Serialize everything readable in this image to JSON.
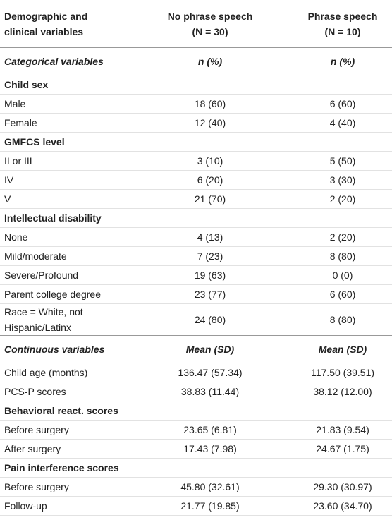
{
  "table": {
    "header": [
      [
        "Demographic and",
        "clinical variables"
      ],
      [
        "No phrase speech",
        "(N = 30)"
      ],
      [
        "Phrase speech",
        "(N = 10)"
      ]
    ],
    "rows": [
      {
        "kind": "group",
        "cells": [
          "Categorical variables",
          "n (%)",
          "n (%)"
        ]
      },
      {
        "kind": "section",
        "cells": [
          "Child sex"
        ]
      },
      {
        "kind": "data",
        "cells": [
          "Male",
          "18 (60)",
          "6 (60)"
        ]
      },
      {
        "kind": "data",
        "cells": [
          "Female",
          "12 (40)",
          "4 (40)"
        ]
      },
      {
        "kind": "section",
        "cells": [
          "GMFCS level"
        ]
      },
      {
        "kind": "data",
        "cells": [
          "II or III",
          "3 (10)",
          "5 (50)"
        ]
      },
      {
        "kind": "data",
        "cells": [
          "IV",
          "6 (20)",
          "3 (30)"
        ]
      },
      {
        "kind": "data",
        "cells": [
          "V",
          "21 (70)",
          "2 (20)"
        ]
      },
      {
        "kind": "section",
        "cells": [
          "Intellectual disability"
        ]
      },
      {
        "kind": "data",
        "cells": [
          "None",
          "4 (13)",
          "2 (20)"
        ]
      },
      {
        "kind": "data",
        "cells": [
          "Mild/moderate",
          "7 (23)",
          "8 (80)"
        ]
      },
      {
        "kind": "data",
        "cells": [
          "Severe/Profound",
          "19 (63)",
          "0 (0)"
        ]
      },
      {
        "kind": "data",
        "cells": [
          "Parent college degree",
          "23 (77)",
          "6 (60)"
        ]
      },
      {
        "kind": "data",
        "cells": [
          "Race = White, not Hispanic/Latinx",
          "24 (80)",
          "8 (80)"
        ]
      },
      {
        "kind": "group",
        "cells": [
          "Continuous variables",
          "Mean (SD)",
          "Mean (SD)"
        ]
      },
      {
        "kind": "data",
        "cells": [
          "Child age (months)",
          "136.47 (57.34)",
          "117.50 (39.51)"
        ]
      },
      {
        "kind": "data",
        "cells": [
          "PCS-P scores",
          "38.83 (11.44)",
          "38.12 (12.00)"
        ]
      },
      {
        "kind": "section",
        "cells": [
          "Behavioral react. scores"
        ]
      },
      {
        "kind": "data",
        "cells": [
          "Before surgery",
          "23.65 (6.81)",
          "21.83 (9.54)"
        ]
      },
      {
        "kind": "data",
        "cells": [
          "After surgery",
          "17.43 (7.98)",
          "24.67 (1.75)"
        ]
      },
      {
        "kind": "section",
        "cells": [
          "Pain interference scores"
        ]
      },
      {
        "kind": "data",
        "cells": [
          "Before surgery",
          "45.80 (32.61)",
          "29.30 (30.97)"
        ]
      },
      {
        "kind": "data",
        "cells": [
          "Follow-up",
          "21.77 (19.85)",
          "23.60 (34.70)"
        ]
      }
    ]
  }
}
